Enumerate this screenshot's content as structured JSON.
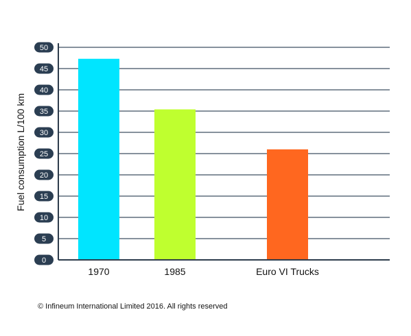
{
  "chart_data": {
    "type": "bar",
    "title": "",
    "xlabel": "",
    "ylabel": "Fuel consumption L/100 km",
    "categories": [
      "1970",
      "1985",
      "Euro VI Trucks"
    ],
    "values": [
      47.3,
      35.4,
      26.0
    ],
    "colors": [
      "#00e5ff",
      "#bfff2f",
      "#ff671f"
    ],
    "ylim": [
      0,
      50
    ],
    "yticks": [
      0,
      5,
      10,
      15,
      20,
      25,
      30,
      35,
      40,
      45,
      50
    ],
    "grid": true,
    "legend": "none"
  },
  "footer": {
    "copyright": "© Infineum International Limited 2016. All rights reserved"
  }
}
